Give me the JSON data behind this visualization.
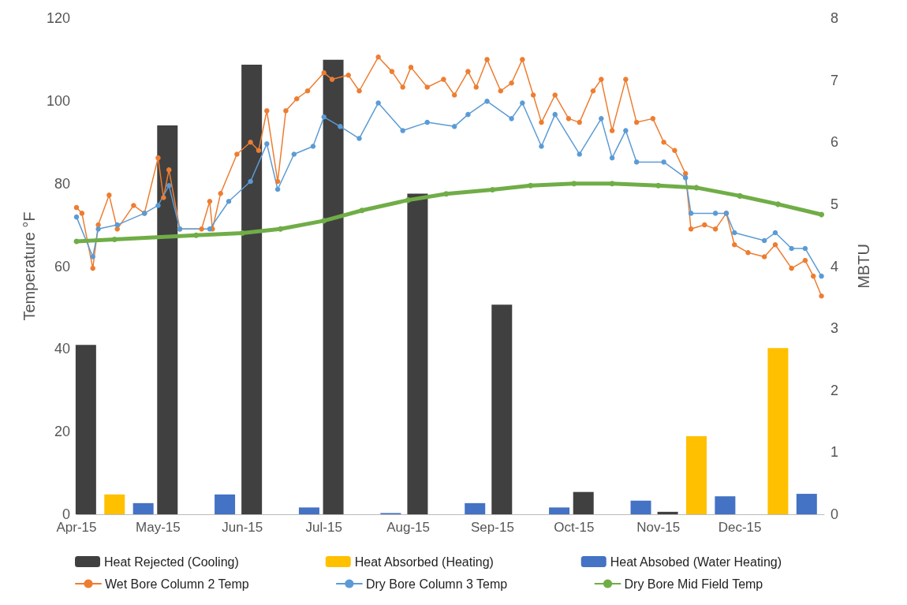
{
  "chart_data": {
    "type": "line",
    "ylabel": "Temperature °F",
    "y2label": "MBTU",
    "xlim": [
      "2015-04-01",
      "2016-01-01"
    ],
    "xticks": [
      {
        "value": "2015-04-01",
        "label": "Apr-15"
      },
      {
        "value": "2015-05-01",
        "label": "May-15"
      },
      {
        "value": "2015-06-01",
        "label": "Jun-15"
      },
      {
        "value": "2015-07-01",
        "label": "Jul-15"
      },
      {
        "value": "2015-08-01",
        "label": "Aug-15"
      },
      {
        "value": "2015-09-01",
        "label": "Sep-15"
      },
      {
        "value": "2015-10-01",
        "label": "Oct-15"
      },
      {
        "value": "2015-11-01",
        "label": "Nov-15"
      },
      {
        "value": "2015-12-01",
        "label": "Dec-15"
      }
    ],
    "ylim": [
      0,
      120
    ],
    "yticks": [
      0,
      20,
      40,
      60,
      80,
      100,
      120
    ],
    "y2lim": [
      0,
      8
    ],
    "y2ticks": [
      0,
      1,
      2,
      3,
      4,
      5,
      6,
      7,
      8
    ],
    "legend": "bottom",
    "marker": "circle",
    "line_style": "solid",
    "series": [
      {
        "name": "Heat Rejected (Cooling)",
        "type": "bar",
        "axis": "y2",
        "color": "#404040",
        "x": [
          "2015-04-15",
          "2015-05-15",
          "2015-06-15",
          "2015-07-15",
          "2015-08-15",
          "2015-09-15",
          "2015-10-15",
          "2015-11-15"
        ],
        "values": [
          2.73,
          6.27,
          7.25,
          7.33,
          5.17,
          3.38,
          0.36,
          0.04
        ]
      },
      {
        "name": "Heat Absorbed (Heating)",
        "type": "bar",
        "axis": "y2",
        "color": "#ffc000",
        "x": [
          "2015-04-15",
          "2015-05-15",
          "2015-06-15",
          "2015-07-15",
          "2015-08-15",
          "2015-09-15",
          "2015-10-15",
          "2015-11-15",
          "2015-12-15"
        ],
        "values": [
          0.32,
          null,
          null,
          null,
          null,
          null,
          null,
          1.26,
          2.68
        ]
      },
      {
        "name": "Heat Absobed (Water Heating)",
        "type": "bar",
        "axis": "y2",
        "color": "#4472c4",
        "x": [
          "2015-04-15",
          "2015-05-15",
          "2015-06-15",
          "2015-07-15",
          "2015-08-15",
          "2015-09-15",
          "2015-10-15",
          "2015-11-15",
          "2015-12-15"
        ],
        "values": [
          0.18,
          0.32,
          0.11,
          0.02,
          0.18,
          0.11,
          0.22,
          0.29,
          0.33
        ]
      },
      {
        "name": "Wet Bore Column 2 Temp",
        "color": "#ed7d31",
        "x": [
          "2015-04-01",
          "2015-04-03",
          "2015-04-07",
          "2015-04-09",
          "2015-04-13",
          "2015-04-16",
          "2015-04-22",
          "2015-04-26",
          "2015-05-01",
          "2015-05-03",
          "2015-05-05",
          "2015-05-09",
          "2015-05-17",
          "2015-05-20",
          "2015-05-21",
          "2015-05-24",
          "2015-05-30",
          "2015-06-04",
          "2015-06-07",
          "2015-06-10",
          "2015-06-14",
          "2015-06-17",
          "2015-06-21",
          "2015-06-25",
          "2015-07-01",
          "2015-07-04",
          "2015-07-10",
          "2015-07-14",
          "2015-07-21",
          "2015-07-26",
          "2015-07-30",
          "2015-08-02",
          "2015-08-08",
          "2015-08-14",
          "2015-08-18",
          "2015-08-23",
          "2015-08-26",
          "2015-08-30",
          "2015-09-04",
          "2015-09-08",
          "2015-09-12",
          "2015-09-16",
          "2015-09-19",
          "2015-09-24",
          "2015-09-29",
          "2015-10-03",
          "2015-10-08",
          "2015-10-11",
          "2015-10-15",
          "2015-10-20",
          "2015-10-24",
          "2015-10-30",
          "2015-11-03",
          "2015-11-07",
          "2015-11-11",
          "2015-11-13",
          "2015-11-18",
          "2015-11-22",
          "2015-11-26",
          "2015-11-29",
          "2015-12-04",
          "2015-12-10",
          "2015-12-14",
          "2015-12-20",
          "2015-12-25",
          "2015-12-28",
          "2015-12-31"
        ],
        "values": [
          74.2,
          72.8,
          59.5,
          70,
          77.2,
          69,
          74.7,
          72.8,
          86.2,
          76.6,
          83.3,
          69,
          69,
          75.7,
          69,
          77.6,
          87.1,
          90,
          88,
          97.6,
          80.5,
          97.6,
          100.5,
          102.4,
          106.8,
          105.2,
          106.2,
          102.4,
          110.6,
          107.1,
          103.3,
          108.1,
          103.3,
          105.2,
          101.4,
          107.1,
          103.3,
          110,
          102.4,
          104.3,
          110,
          101.4,
          94.8,
          101.4,
          95.7,
          94.8,
          102.4,
          105.2,
          92.8,
          105.2,
          94.8,
          95.7,
          90,
          88,
          82.4,
          69,
          70,
          69,
          72.8,
          65.2,
          63.3,
          62.3,
          65.2,
          59.5,
          61.4,
          57.6,
          52.8
        ]
      },
      {
        "name": "Dry Bore Column 3 Temp",
        "color": "#5b9bd5",
        "x": [
          "2015-04-01",
          "2015-04-07",
          "2015-04-09",
          "2015-04-16",
          "2015-04-26",
          "2015-05-01",
          "2015-05-05",
          "2015-05-09",
          "2015-05-20",
          "2015-05-27",
          "2015-06-04",
          "2015-06-10",
          "2015-06-14",
          "2015-06-20",
          "2015-06-27",
          "2015-07-01",
          "2015-07-07",
          "2015-07-14",
          "2015-07-21",
          "2015-07-30",
          "2015-08-08",
          "2015-08-18",
          "2015-08-23",
          "2015-08-30",
          "2015-09-08",
          "2015-09-12",
          "2015-09-19",
          "2015-09-24",
          "2015-10-03",
          "2015-10-11",
          "2015-10-15",
          "2015-10-20",
          "2015-10-24",
          "2015-11-03",
          "2015-11-11",
          "2015-11-13",
          "2015-11-22",
          "2015-11-26",
          "2015-11-29",
          "2015-12-10",
          "2015-12-14",
          "2015-12-20",
          "2015-12-25",
          "2015-12-31"
        ],
        "values": [
          71.9,
          62.3,
          69,
          70,
          72.8,
          74.7,
          79.5,
          69,
          69,
          75.7,
          80.5,
          89.6,
          78.6,
          87.1,
          89,
          96.1,
          93.8,
          90.9,
          99.5,
          92.8,
          94.8,
          93.8,
          96.7,
          99.9,
          95.7,
          99.5,
          89,
          96.7,
          87.1,
          95.7,
          86.2,
          92.8,
          85.2,
          85.2,
          81.4,
          72.8,
          72.8,
          72.8,
          68.1,
          66.2,
          68.1,
          64.3,
          64.3,
          57.6
        ]
      },
      {
        "name": "Dry Bore Mid Field Temp",
        "color": "#70ad47",
        "x": [
          "2015-04-01",
          "2015-04-15",
          "2015-05-15",
          "2015-06-01",
          "2015-06-15",
          "2015-07-01",
          "2015-07-15",
          "2015-08-01",
          "2015-08-15",
          "2015-09-01",
          "2015-09-15",
          "2015-10-01",
          "2015-10-15",
          "2015-11-01",
          "2015-11-15",
          "2015-12-01",
          "2015-12-15",
          "2015-12-31"
        ],
        "values": [
          66,
          66.5,
          67.5,
          68,
          69,
          71,
          73.5,
          76,
          77.5,
          78.5,
          79.5,
          80,
          80,
          79.5,
          79,
          77,
          75,
          72.5
        ]
      }
    ]
  }
}
